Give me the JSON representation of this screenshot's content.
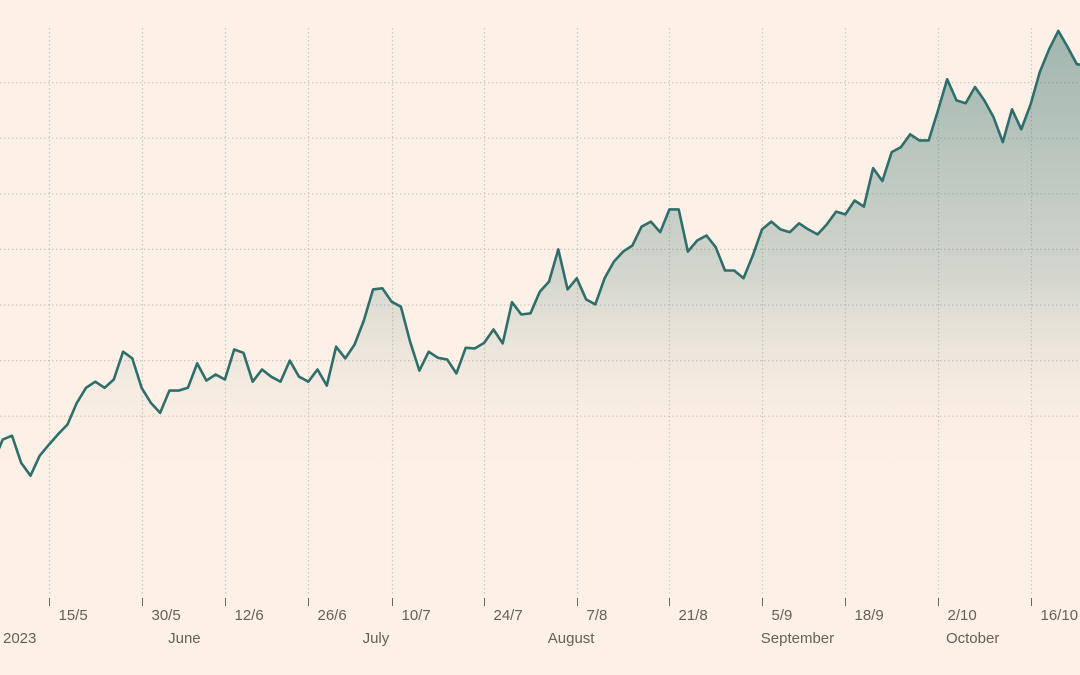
{
  "chart_data": {
    "type": "area",
    "title": "",
    "xlabel": "",
    "ylabel": "",
    "y_tick_labels_shown": false,
    "ylim": [
      0,
      10
    ],
    "y_gridlines": [
      3,
      4,
      5,
      6,
      7,
      8,
      9
    ],
    "grid": true,
    "colors": {
      "background": "#FDF0E6",
      "line": "#2E6F6B",
      "fill": "#2E6F6B",
      "grid": "#CFC6BE",
      "text": "#66605A"
    },
    "x": [
      "2023-05-05",
      "2023-05-08",
      "2023-05-09",
      "2023-05-10",
      "2023-05-11",
      "2023-05-12",
      "2023-05-15",
      "2023-05-16",
      "2023-05-17",
      "2023-05-18",
      "2023-05-19",
      "2023-05-22",
      "2023-05-23",
      "2023-05-24",
      "2023-05-25",
      "2023-05-26",
      "2023-05-30",
      "2023-05-31",
      "2023-06-01",
      "2023-06-02",
      "2023-06-05",
      "2023-06-06",
      "2023-06-07",
      "2023-06-08",
      "2023-06-09",
      "2023-06-12",
      "2023-06-13",
      "2023-06-14",
      "2023-06-15",
      "2023-06-16",
      "2023-06-20",
      "2023-06-21",
      "2023-06-22",
      "2023-06-23",
      "2023-06-26",
      "2023-06-27",
      "2023-06-28",
      "2023-06-29",
      "2023-06-30",
      "2023-07-03",
      "2023-07-05",
      "2023-07-06",
      "2023-07-07",
      "2023-07-10",
      "2023-07-11",
      "2023-07-12",
      "2023-07-13",
      "2023-07-14",
      "2023-07-17",
      "2023-07-18",
      "2023-07-19",
      "2023-07-20",
      "2023-07-21",
      "2023-07-24",
      "2023-07-25",
      "2023-07-26",
      "2023-07-27",
      "2023-07-28",
      "2023-07-31",
      "2023-08-01",
      "2023-08-02",
      "2023-08-03",
      "2023-08-04",
      "2023-08-07",
      "2023-08-08",
      "2023-08-09",
      "2023-08-10",
      "2023-08-11",
      "2023-08-14",
      "2023-08-15",
      "2023-08-16",
      "2023-08-17",
      "2023-08-18",
      "2023-08-21",
      "2023-08-22",
      "2023-08-23",
      "2023-08-24",
      "2023-08-25",
      "2023-08-28",
      "2023-08-29",
      "2023-08-30",
      "2023-08-31",
      "2023-09-01",
      "2023-09-05",
      "2023-09-06",
      "2023-09-07",
      "2023-09-08",
      "2023-09-11",
      "2023-09-12",
      "2023-09-13",
      "2023-09-14",
      "2023-09-15",
      "2023-09-18",
      "2023-09-19",
      "2023-09-20",
      "2023-09-21",
      "2023-09-22",
      "2023-09-25",
      "2023-09-26",
      "2023-09-27",
      "2023-09-28",
      "2023-09-29",
      "2023-10-02",
      "2023-10-03",
      "2023-10-04",
      "2023-10-05",
      "2023-10-06",
      "2023-10-09",
      "2023-10-10",
      "2023-10-11",
      "2023-10-12",
      "2023-10-13",
      "2023-10-16",
      "2023-10-17",
      "2023-10-18",
      "2023-10-19",
      "2023-10-20",
      "2023-10-23"
    ],
    "values": [
      2.18,
      2.58,
      2.65,
      2.16,
      1.93,
      2.29,
      2.49,
      2.68,
      2.85,
      3.24,
      3.51,
      3.62,
      3.51,
      3.66,
      4.16,
      4.04,
      3.51,
      3.24,
      3.06,
      3.46,
      3.46,
      3.51,
      3.95,
      3.64,
      3.75,
      3.66,
      4.2,
      4.14,
      3.62,
      3.84,
      3.71,
      3.62,
      4.0,
      3.71,
      3.62,
      3.84,
      3.55,
      4.25,
      4.04,
      4.29,
      4.72,
      5.28,
      5.3,
      5.06,
      4.97,
      4.34,
      3.82,
      4.16,
      4.05,
      4.02,
      3.77,
      4.23,
      4.22,
      4.32,
      4.56,
      4.31,
      5.05,
      4.83,
      4.85,
      5.24,
      5.42,
      6.0,
      5.28,
      5.48,
      5.1,
      5.01,
      5.48,
      5.78,
      5.96,
      6.07,
      6.41,
      6.5,
      6.31,
      6.72,
      6.72,
      5.96,
      6.16,
      6.25,
      6.04,
      5.62,
      5.62,
      5.48,
      5.89,
      6.36,
      6.5,
      6.36,
      6.31,
      6.47,
      6.36,
      6.27,
      6.45,
      6.68,
      6.63,
      6.88,
      6.77,
      7.46,
      7.23,
      7.75,
      7.84,
      8.07,
      7.96,
      7.96,
      8.5,
      9.06,
      8.68,
      8.63,
      8.92,
      8.68,
      8.38,
      7.93,
      8.52,
      8.16,
      8.61,
      9.19,
      9.6,
      9.93,
      9.64,
      9.33
    ],
    "x_ticks": [
      {
        "date": "2023-05-15",
        "label": "15/5"
      },
      {
        "date": "2023-05-30",
        "label": "30/5"
      },
      {
        "date": "2023-06-12",
        "label": "12/6"
      },
      {
        "date": "2023-06-26",
        "label": "26/6"
      },
      {
        "date": "2023-07-10",
        "label": "10/7"
      },
      {
        "date": "2023-07-24",
        "label": "24/7"
      },
      {
        "date": "2023-08-07",
        "label": "7/8"
      },
      {
        "date": "2023-08-21",
        "label": "21/8"
      },
      {
        "date": "2023-09-05",
        "label": "5/9"
      },
      {
        "date": "2023-09-18",
        "label": "18/9"
      },
      {
        "date": "2023-10-02",
        "label": "2/10"
      },
      {
        "date": "2023-10-16",
        "label": "16/10"
      }
    ],
    "month_labels": [
      {
        "date": "2023-05-05",
        "label": "2023"
      },
      {
        "date": "2023-06-01",
        "label": "June"
      },
      {
        "date": "2023-07-03",
        "label": "July"
      },
      {
        "date": "2023-08-01",
        "label": "August"
      },
      {
        "date": "2023-09-01",
        "label": "September"
      },
      {
        "date": "2023-10-02",
        "label": "October"
      }
    ]
  }
}
